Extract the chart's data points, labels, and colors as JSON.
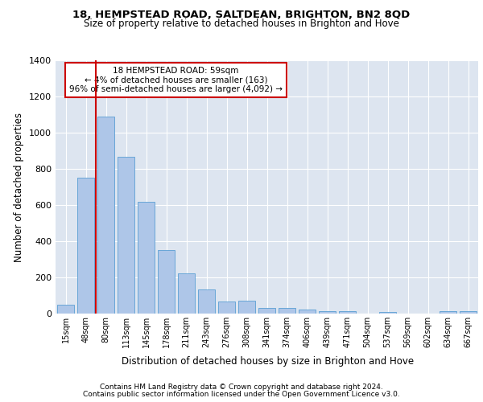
{
  "title1": "18, HEMPSTEAD ROAD, SALTDEAN, BRIGHTON, BN2 8QD",
  "title2": "Size of property relative to detached houses in Brighton and Hove",
  "xlabel": "Distribution of detached houses by size in Brighton and Hove",
  "ylabel": "Number of detached properties",
  "categories": [
    "15sqm",
    "48sqm",
    "80sqm",
    "113sqm",
    "145sqm",
    "178sqm",
    "211sqm",
    "243sqm",
    "276sqm",
    "308sqm",
    "341sqm",
    "374sqm",
    "406sqm",
    "439sqm",
    "471sqm",
    "504sqm",
    "537sqm",
    "569sqm",
    "602sqm",
    "634sqm",
    "667sqm"
  ],
  "values": [
    50,
    750,
    1090,
    865,
    620,
    350,
    222,
    135,
    65,
    70,
    32,
    32,
    22,
    14,
    15,
    0,
    10,
    0,
    0,
    12,
    12
  ],
  "bar_color": "#aec6e8",
  "bar_edge_color": "#5a9fd4",
  "background_color": "#dde5f0",
  "grid_color": "#ffffff",
  "vline_color": "#cc0000",
  "annotation_text": "18 HEMPSTEAD ROAD: 59sqm\n← 4% of detached houses are smaller (163)\n96% of semi-detached houses are larger (4,092) →",
  "annotation_box_color": "#ffffff",
  "annotation_box_edge_color": "#cc0000",
  "footer1": "Contains HM Land Registry data © Crown copyright and database right 2024.",
  "footer2": "Contains public sector information licensed under the Open Government Licence v3.0.",
  "ylim": [
    0,
    1400
  ],
  "yticks": [
    0,
    200,
    400,
    600,
    800,
    1000,
    1200,
    1400
  ]
}
